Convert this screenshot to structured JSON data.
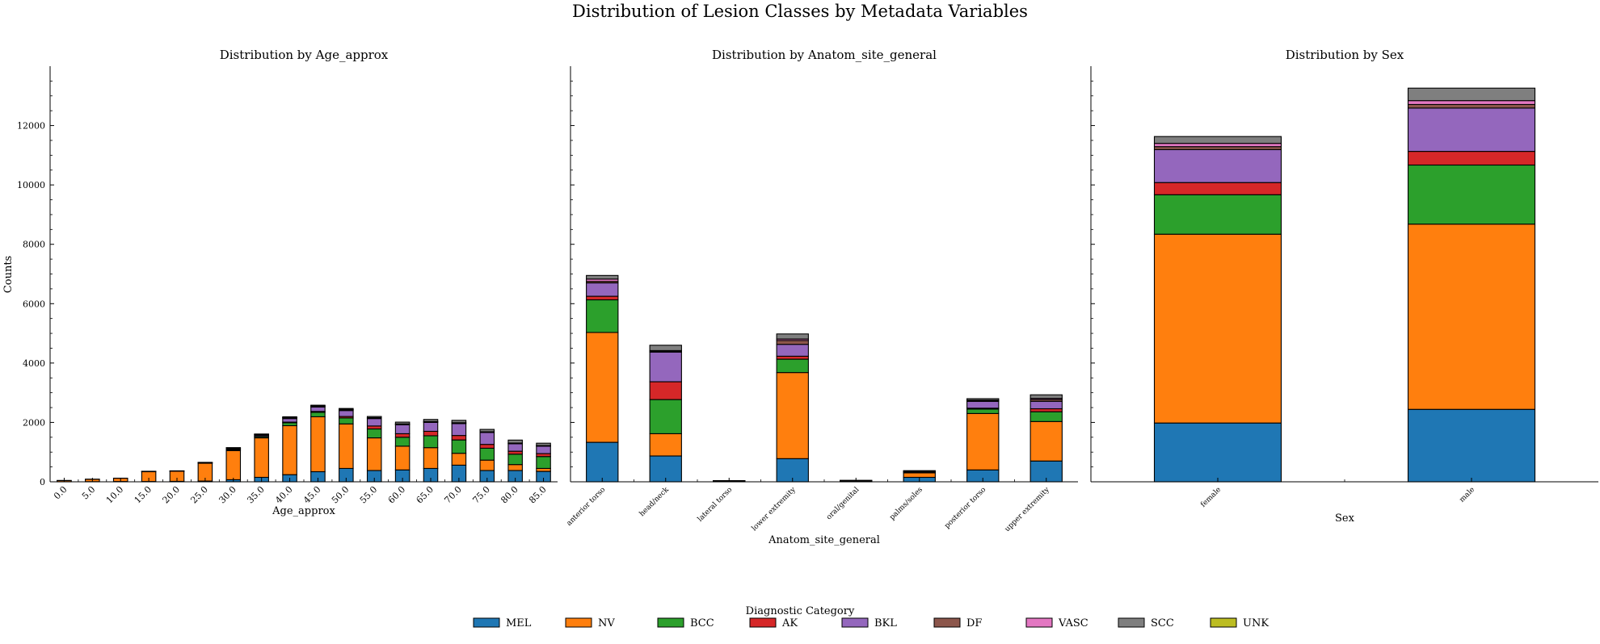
{
  "title": "Distribution of Lesion Classes by Metadata Variables",
  "ylabel": "Counts",
  "colors": {
    "MEL": "#1f77b4",
    "NV": "#ff7f0e",
    "BCC": "#2ca02c",
    "AK": "#d62728",
    "BKL": "#9467bd",
    "DF": "#8c564b",
    "VASC": "#e377c2",
    "SCC": "#7f7f7f",
    "UNK": "#bcbd22"
  },
  "legend": {
    "title": "Diagnostic Category",
    "placement": "bottom-center",
    "entries": [
      "MEL",
      "NV",
      "BCC",
      "AK",
      "BKL",
      "DF",
      "VASC",
      "SCC",
      "UNK"
    ]
  },
  "chart_data": [
    {
      "type": "bar",
      "stacked": true,
      "title": "Distribution by Age_approx",
      "xlabel": "Age_approx",
      "ylabel": "Counts",
      "ylim": [
        0,
        14000
      ],
      "yticks": [
        0,
        2000,
        4000,
        6000,
        8000,
        10000,
        12000
      ],
      "categories": [
        "0.0",
        "5.0",
        "10.0",
        "15.0",
        "20.0",
        "25.0",
        "30.0",
        "35.0",
        "40.0",
        "45.0",
        "50.0",
        "55.0",
        "60.0",
        "65.0",
        "70.0",
        "75.0",
        "80.0",
        "85.0"
      ],
      "series": [
        {
          "name": "MEL",
          "values": [
            2,
            5,
            10,
            10,
            15,
            25,
            70,
            150,
            240,
            340,
            450,
            380,
            400,
            450,
            560,
            380,
            380,
            350
          ]
        },
        {
          "name": "NV",
          "values": [
            40,
            80,
            110,
            330,
            340,
            600,
            980,
            1330,
            1650,
            1850,
            1500,
            1100,
            800,
            700,
            400,
            350,
            200,
            100
          ]
        },
        {
          "name": "BCC",
          "values": [
            0,
            0,
            0,
            5,
            5,
            10,
            30,
            40,
            100,
            150,
            200,
            300,
            300,
            400,
            450,
            400,
            350,
            400
          ]
        },
        {
          "name": "AK",
          "values": [
            0,
            0,
            0,
            0,
            0,
            0,
            5,
            10,
            20,
            30,
            50,
            100,
            120,
            150,
            150,
            130,
            100,
            100
          ]
        },
        {
          "name": "BKL",
          "values": [
            0,
            0,
            0,
            5,
            5,
            10,
            30,
            40,
            120,
            150,
            200,
            250,
            300,
            300,
            400,
            400,
            250,
            250
          ]
        },
        {
          "name": "DF",
          "values": [
            0,
            0,
            0,
            0,
            0,
            5,
            20,
            20,
            30,
            30,
            30,
            20,
            20,
            20,
            20,
            15,
            15,
            10
          ]
        },
        {
          "name": "VASC",
          "values": [
            2,
            2,
            2,
            5,
            5,
            5,
            10,
            10,
            10,
            10,
            10,
            10,
            10,
            10,
            10,
            10,
            10,
            10
          ]
        },
        {
          "name": "SCC",
          "values": [
            0,
            0,
            0,
            0,
            0,
            0,
            5,
            10,
            20,
            20,
            30,
            40,
            60,
            70,
            80,
            80,
            100,
            80
          ]
        },
        {
          "name": "UNK",
          "values": [
            0,
            0,
            0,
            0,
            0,
            0,
            0,
            0,
            0,
            0,
            0,
            0,
            0,
            0,
            0,
            0,
            0,
            0
          ]
        }
      ]
    },
    {
      "type": "bar",
      "stacked": true,
      "title": "Distribution by Anatom_site_general",
      "xlabel": "Anatom_site_general",
      "ylim": [
        0,
        14000
      ],
      "categories": [
        "anterior torso",
        "head/neck",
        "lateral torso",
        "lower extremity",
        "oral/genital",
        "palms/soles",
        "posterior torso",
        "upper extremity"
      ],
      "series": [
        {
          "name": "MEL",
          "values": [
            1330,
            870,
            10,
            780,
            5,
            150,
            400,
            700
          ]
        },
        {
          "name": "NV",
          "values": [
            3700,
            750,
            20,
            2900,
            20,
            150,
            1900,
            1330
          ]
        },
        {
          "name": "BCC",
          "values": [
            1100,
            1150,
            5,
            450,
            5,
            20,
            150,
            330
          ]
        },
        {
          "name": "AK",
          "values": [
            120,
            600,
            0,
            100,
            5,
            5,
            30,
            100
          ]
        },
        {
          "name": "BKL",
          "values": [
            450,
            1000,
            5,
            400,
            5,
            20,
            230,
            250
          ]
        },
        {
          "name": "DF",
          "values": [
            50,
            30,
            0,
            130,
            0,
            5,
            20,
            60
          ]
        },
        {
          "name": "VASC",
          "values": [
            80,
            20,
            0,
            50,
            0,
            5,
            20,
            40
          ]
        },
        {
          "name": "SCC",
          "values": [
            120,
            180,
            0,
            170,
            10,
            20,
            50,
            120
          ]
        },
        {
          "name": "UNK",
          "values": [
            0,
            0,
            0,
            0,
            0,
            0,
            0,
            0
          ]
        }
      ]
    },
    {
      "type": "bar",
      "stacked": true,
      "title": "Distribution by Sex",
      "xlabel": "Sex",
      "ylim": [
        0,
        14000
      ],
      "categories": [
        "female",
        "male"
      ],
      "series": [
        {
          "name": "MEL",
          "values": [
            1980,
            2440
          ]
        },
        {
          "name": "NV",
          "values": [
            6360,
            6240
          ]
        },
        {
          "name": "BCC",
          "values": [
            1330,
            1990
          ]
        },
        {
          "name": "AK",
          "values": [
            410,
            460
          ]
        },
        {
          "name": "BKL",
          "values": [
            1110,
            1460
          ]
        },
        {
          "name": "DF",
          "values": [
            100,
            120
          ]
        },
        {
          "name": "VASC",
          "values": [
            110,
            130
          ]
        },
        {
          "name": "SCC",
          "values": [
            230,
            420
          ]
        },
        {
          "name": "UNK",
          "values": [
            0,
            0
          ]
        }
      ]
    }
  ]
}
